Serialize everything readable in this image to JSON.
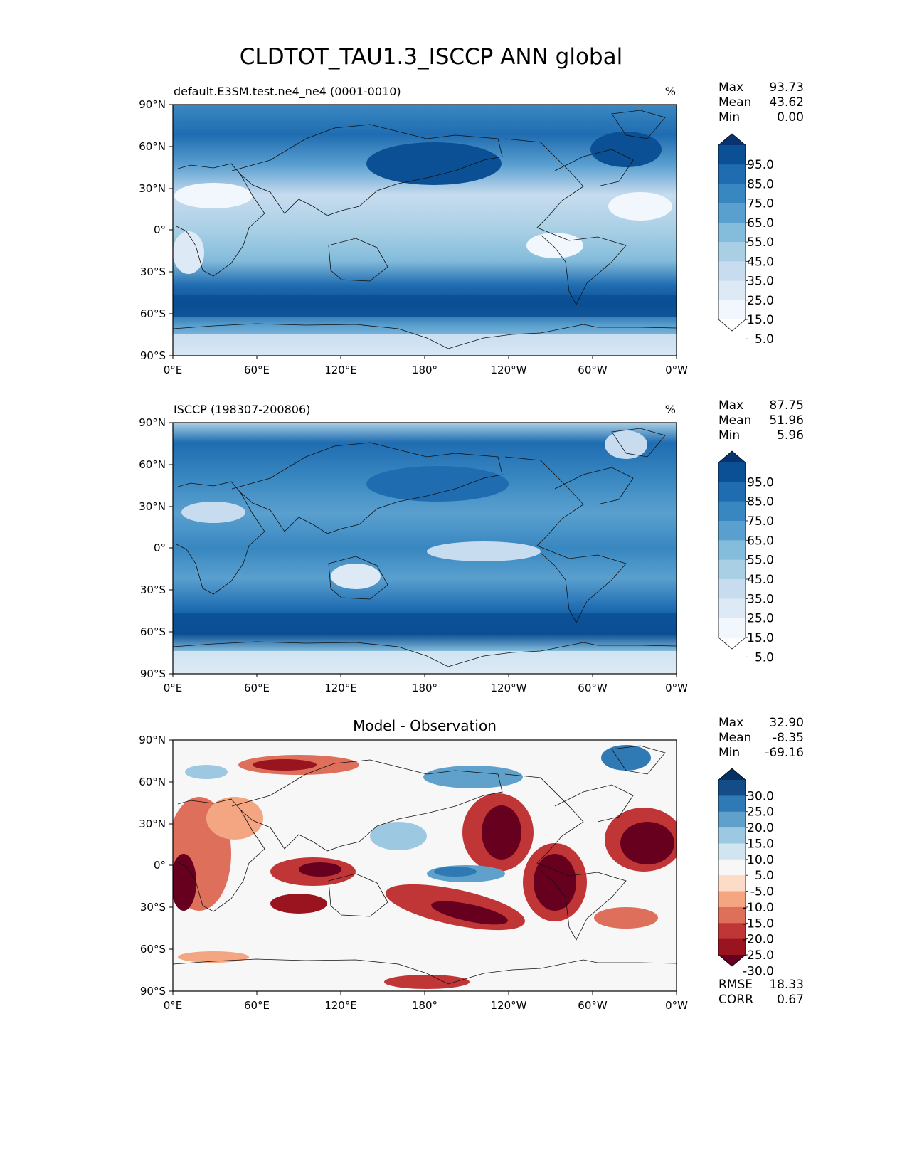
{
  "title": "CLDTOT_TAU1.3_ISCCP ANN global",
  "x_ticks": [
    "0°E",
    "60°E",
    "120°E",
    "180°",
    "120°W",
    "60°W",
    "0°W"
  ],
  "y_ticks": [
    "90°N",
    "60°N",
    "30°N",
    "0°",
    "30°S",
    "60°S",
    "90°S"
  ],
  "panels": [
    {
      "name": "test",
      "left_title": "default.E3SM.test.ne4_ne4 (0001-0010)",
      "center_title": "",
      "units": "%",
      "stats": [
        {
          "label": "Max",
          "value": "93.73"
        },
        {
          "label": "Mean",
          "value": "43.62"
        },
        {
          "label": "Min",
          "value": "0.00"
        }
      ],
      "colorbar": {
        "labels": [
          "95.0",
          "85.0",
          "75.0",
          "65.0",
          "55.0",
          "45.0",
          "35.0",
          "25.0",
          "15.0",
          "5.0"
        ],
        "colors": [
          "#083370",
          "#0b4f94",
          "#1f6cb1",
          "#3887c0",
          "#5aa0cf",
          "#84bcdb",
          "#a9cfe5",
          "#c7dcef",
          "#ddeaf6",
          "#f1f7fd",
          "#ffffff"
        ]
      },
      "extra_stats": []
    },
    {
      "name": "reference",
      "left_title": "ISCCP (198307-200806)",
      "center_title": "",
      "units": "%",
      "stats": [
        {
          "label": "Max",
          "value": "87.75"
        },
        {
          "label": "Mean",
          "value": "51.96"
        },
        {
          "label": "Min",
          "value": "5.96"
        }
      ],
      "colorbar": {
        "labels": [
          "95.0",
          "85.0",
          "75.0",
          "65.0",
          "55.0",
          "45.0",
          "35.0",
          "25.0",
          "15.0",
          "5.0"
        ],
        "colors": [
          "#083370",
          "#0b4f94",
          "#1f6cb1",
          "#3887c0",
          "#5aa0cf",
          "#84bcdb",
          "#a9cfe5",
          "#c7dcef",
          "#ddeaf6",
          "#f1f7fd",
          "#ffffff"
        ]
      },
      "extra_stats": []
    },
    {
      "name": "difference",
      "left_title": "",
      "center_title": "Model - Observation",
      "units": "",
      "stats": [
        {
          "label": "Max",
          "value": "32.90"
        },
        {
          "label": "Mean",
          "value": "-8.35"
        },
        {
          "label": "Min",
          "value": "-69.16"
        }
      ],
      "colorbar": {
        "labels": [
          "30.0",
          "25.0",
          "20.0",
          "15.0",
          "10.0",
          "5.0",
          "-5.0",
          "-10.0",
          "-15.0",
          "-20.0",
          "-25.0",
          "-30.0"
        ],
        "colors": [
          "#053061",
          "#134c87",
          "#2f79b5",
          "#5fa1cb",
          "#9cc9e1",
          "#d1e5f0",
          "#f7f7f7",
          "#fcdbc7",
          "#f4a582",
          "#dd6f5b",
          "#c03637",
          "#99141f",
          "#67001f"
        ]
      },
      "extra_stats": [
        {
          "label": "RMSE",
          "value": "18.33"
        },
        {
          "label": "CORR",
          "value": "0.67"
        }
      ]
    }
  ]
}
